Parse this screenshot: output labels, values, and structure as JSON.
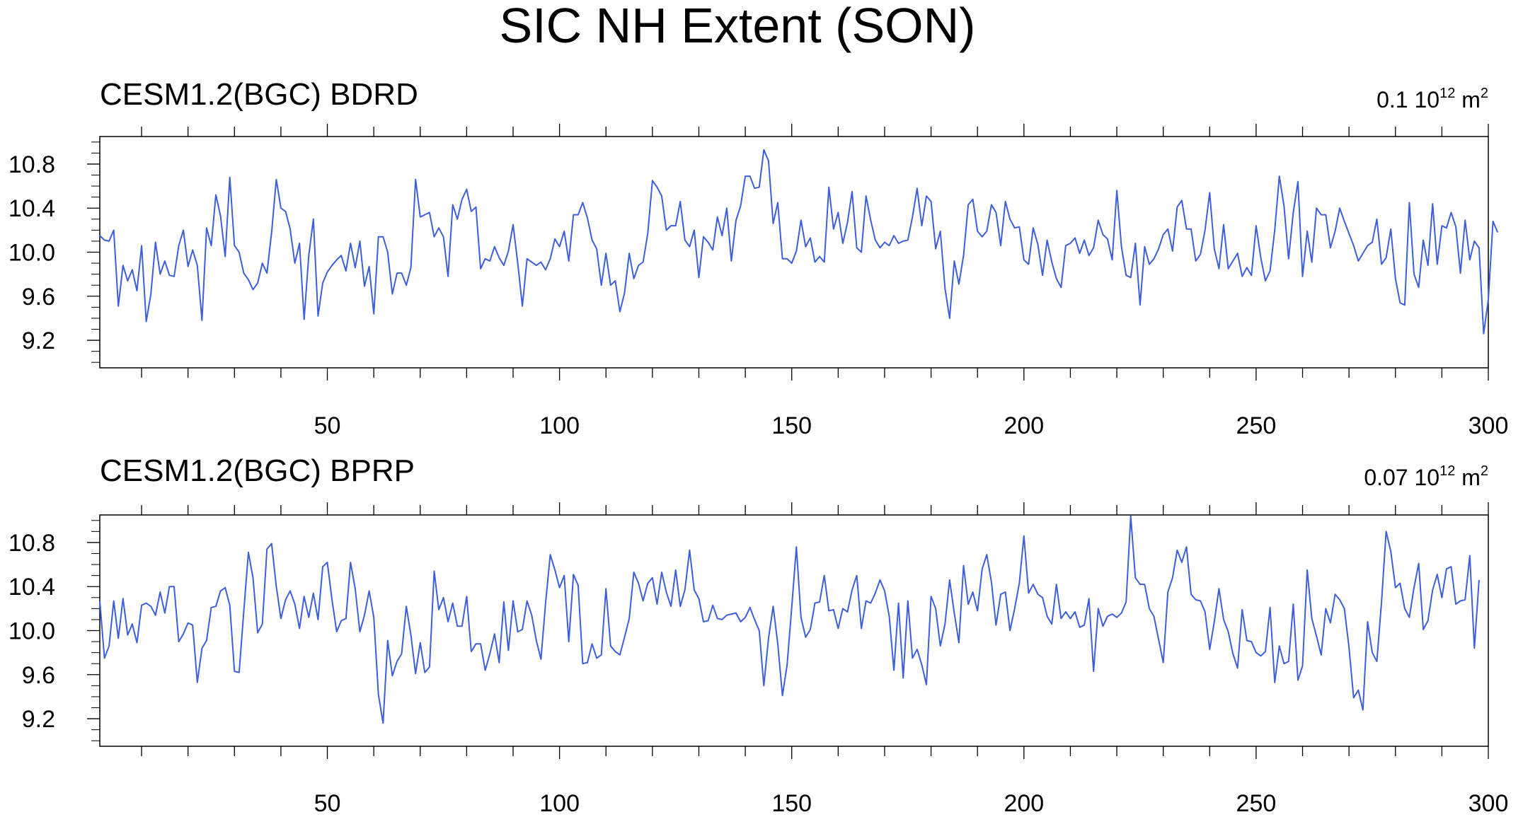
{
  "title": "SIC NH Extent (SON)",
  "colors": {
    "series": "#3d5fd9"
  },
  "chart_data": [
    {
      "type": "line",
      "title": "CESM1.2(BGC) BDRD",
      "annotation": "0.1 10",
      "annotation_sup": "12",
      "annotation_unit": " m",
      "annotation_unit_sup": "2",
      "xlim": [
        1,
        300
      ],
      "ylim": [
        8.95,
        11.05
      ],
      "xticks": [
        50,
        100,
        150,
        200,
        250,
        300
      ],
      "yticks": [
        9.2,
        9.6,
        10.0,
        10.4,
        10.8
      ],
      "ytick_labels": [
        "9.2",
        "9.6",
        "10.0",
        "10.4",
        "10.8"
      ],
      "series": [
        {
          "values": [
            10.15,
            10.11,
            10.1,
            10.2,
            9.51,
            9.88,
            9.74,
            9.84,
            9.65,
            10.06,
            9.37,
            9.62,
            10.09,
            9.8,
            9.92,
            9.79,
            9.78,
            10.06,
            10.2,
            9.87,
            10.02,
            9.88,
            9.38,
            10.22,
            10.06,
            10.52,
            10.33,
            9.96,
            10.68,
            10.06,
            10.0,
            9.81,
            9.75,
            9.66,
            9.72,
            9.9,
            9.81,
            10.18,
            10.66,
            10.4,
            10.37,
            10.21,
            9.9,
            10.08,
            9.39,
            9.97,
            10.3,
            9.42,
            9.72,
            9.82,
            9.88,
            9.93,
            9.97,
            9.83,
            10.08,
            9.86,
            10.1,
            9.69,
            9.87,
            9.44,
            10.14,
            10.14,
            10.0,
            9.62,
            9.81,
            9.81,
            9.7,
            9.86,
            10.66,
            10.32,
            10.34,
            10.36,
            10.14,
            10.22,
            10.14,
            9.78,
            10.43,
            10.3,
            10.48,
            10.57,
            10.37,
            10.41,
            9.85,
            9.94,
            9.92,
            10.05,
            9.95,
            9.88,
            10.01,
            10.25,
            9.9,
            9.51,
            9.94,
            9.91,
            9.88,
            9.91,
            9.84,
            9.94,
            10.12,
            10.05,
            10.19,
            9.92,
            10.34,
            10.34,
            10.45,
            10.31,
            10.11,
            10.03,
            9.7,
            9.99,
            9.7,
            9.74,
            9.46,
            9.63,
            9.99,
            9.76,
            9.88,
            9.91,
            10.17,
            10.65,
            10.59,
            10.51,
            10.2,
            10.24,
            10.24,
            10.46,
            10.11,
            10.05,
            10.2,
            9.77,
            10.14,
            10.09,
            10.02,
            10.32,
            10.15,
            10.4,
            9.92,
            10.29,
            10.42,
            10.69,
            10.69,
            10.58,
            10.59,
            10.93,
            10.83,
            10.26,
            10.45,
            9.94,
            9.94,
            9.9,
            10.01,
            10.29,
            10.05,
            10.13,
            9.91,
            9.96,
            9.91,
            10.59,
            10.21,
            10.36,
            10.08,
            10.27,
            10.55,
            10.04,
            10.0,
            10.51,
            10.29,
            10.11,
            10.04,
            10.09,
            10.06,
            10.15,
            10.08,
            10.1,
            10.11,
            10.32,
            10.58,
            10.24,
            10.51,
            10.46,
            10.03,
            10.19,
            9.67,
            9.4,
            9.92,
            9.71,
            9.97,
            10.43,
            10.48,
            10.19,
            10.14,
            10.19,
            10.43,
            10.36,
            10.06,
            10.46,
            10.3,
            10.22,
            10.23,
            9.93,
            9.89,
            10.22,
            10.07,
            9.79,
            10.11,
            9.91,
            9.76,
            9.68,
            10.06,
            10.08,
            10.13,
            9.99,
            10.11,
            9.97,
            10.04,
            10.29,
            10.16,
            10.12,
            9.93,
            10.56,
            10.05,
            9.79,
            9.77,
            10.08,
            9.52,
            10.05,
            9.89,
            9.94,
            10.03,
            10.16,
            10.21,
            10.01,
            10.41,
            10.47,
            10.21,
            10.21,
            9.92,
            9.98,
            10.2,
            10.54,
            10.03,
            9.85,
            10.25,
            9.85,
            9.92,
            9.99,
            9.78,
            9.86,
            9.79,
            10.24,
            9.95,
            9.74,
            9.83,
            10.2,
            10.69,
            10.42,
            9.94,
            10.36,
            10.64,
            9.78,
            10.19,
            9.91,
            10.4,
            10.34,
            10.34,
            10.04,
            10.19,
            10.4,
            10.28,
            10.17,
            10.06,
            9.92,
            9.99,
            10.06,
            10.09,
            10.3,
            9.89,
            9.95,
            10.21,
            9.76,
            9.54,
            9.52,
            10.45,
            9.8,
            9.68,
            10.11,
            9.88,
            10.44,
            9.89,
            10.24,
            10.22,
            10.36,
            10.23,
            9.81,
            10.29,
            9.93,
            10.1,
            10.04,
            9.26,
            9.57,
            10.28,
            10.18
          ]
        }
      ]
    },
    {
      "type": "line",
      "title": "CESM1.2(BGC) BPRP",
      "annotation": "0.07 10",
      "annotation_sup": "12",
      "annotation_unit": " m",
      "annotation_unit_sup": "2",
      "xlim": [
        1,
        300
      ],
      "ylim": [
        8.95,
        11.05
      ],
      "xticks": [
        50,
        100,
        150,
        200,
        250,
        300
      ],
      "yticks": [
        9.2,
        9.6,
        10.0,
        10.4,
        10.8
      ],
      "ytick_labels": [
        "9.2",
        "9.6",
        "10.0",
        "10.4",
        "10.8"
      ],
      "series": [
        {
          "values": [
            10.27,
            9.75,
            9.86,
            10.27,
            9.93,
            10.29,
            9.96,
            10.06,
            9.89,
            10.23,
            10.25,
            10.22,
            10.14,
            10.35,
            10.16,
            10.4,
            10.4,
            9.9,
            9.97,
            10.07,
            10.05,
            9.53,
            9.84,
            9.91,
            10.21,
            10.22,
            10.36,
            10.39,
            10.23,
            9.63,
            9.62,
            10.17,
            10.71,
            10.48,
            9.98,
            10.06,
            10.74,
            10.79,
            10.4,
            10.11,
            10.28,
            10.36,
            10.24,
            10.02,
            10.31,
            10.12,
            10.34,
            10.1,
            10.58,
            10.62,
            10.28,
            9.99,
            10.09,
            10.11,
            10.62,
            10.38,
            9.99,
            10.14,
            10.36,
            10.12,
            9.42,
            9.16,
            9.91,
            9.59,
            9.72,
            9.79,
            10.22,
            9.96,
            9.61,
            9.89,
            9.62,
            9.67,
            10.54,
            10.19,
            10.3,
            10.08,
            10.25,
            10.04,
            10.04,
            10.31,
            9.81,
            9.88,
            9.88,
            9.64,
            9.79,
            9.97,
            9.71,
            10.26,
            9.82,
            10.27,
            9.99,
            10.01,
            10.27,
            10.14,
            9.91,
            9.74,
            10.25,
            10.69,
            10.55,
            10.39,
            10.5,
            9.9,
            10.51,
            10.41,
            9.7,
            9.71,
            9.88,
            9.75,
            9.78,
            10.38,
            9.86,
            9.81,
            9.78,
            9.94,
            10.11,
            10.53,
            10.43,
            10.27,
            10.43,
            10.48,
            10.24,
            10.53,
            10.35,
            10.22,
            10.55,
            10.22,
            10.37,
            10.73,
            10.37,
            10.29,
            10.08,
            10.09,
            10.23,
            10.11,
            10.1,
            10.14,
            10.15,
            10.16,
            10.08,
            10.12,
            10.21,
            10.1,
            10.0,
            9.5,
            9.93,
            10.22,
            9.88,
            9.41,
            9.69,
            10.21,
            10.76,
            10.12,
            9.94,
            10.01,
            10.25,
            10.26,
            10.5,
            10.18,
            10.19,
            10.02,
            10.2,
            10.17,
            10.37,
            10.5,
            10.02,
            10.27,
            10.25,
            10.34,
            10.46,
            10.36,
            10.13,
            9.64,
            10.25,
            9.57,
            10.27,
            9.75,
            9.83,
            9.69,
            9.51,
            10.31,
            10.2,
            9.86,
            10.06,
            10.46,
            10.16,
            9.89,
            10.59,
            10.24,
            10.35,
            10.18,
            10.56,
            10.69,
            10.44,
            10.05,
            10.33,
            10.35,
            10.0,
            10.2,
            10.43,
            10.86,
            10.34,
            10.42,
            10.33,
            10.3,
            10.13,
            10.06,
            10.42,
            10.11,
            10.17,
            10.11,
            10.17,
            10.03,
            10.05,
            10.29,
            9.63,
            10.2,
            10.04,
            10.13,
            10.15,
            10.12,
            10.16,
            10.26,
            11.04,
            10.48,
            10.42,
            10.42,
            10.2,
            10.13,
            9.92,
            9.71,
            10.35,
            10.48,
            10.73,
            10.62,
            10.76,
            10.33,
            10.28,
            10.27,
            10.17,
            9.83,
            10.08,
            10.38,
            10.1,
            9.99,
            9.79,
            9.66,
            10.19,
            9.91,
            9.9,
            9.8,
            9.77,
            9.81,
            10.21,
            9.53,
            9.86,
            9.7,
            9.72,
            10.24,
            9.55,
            9.68,
            10.55,
            10.11,
            9.95,
            9.78,
            10.2,
            10.07,
            10.33,
            10.28,
            10.2,
            9.85,
            9.39,
            9.46,
            9.28,
            10.08,
            9.8,
            9.72,
            10.26,
            10.9,
            10.72,
            10.39,
            10.43,
            10.2,
            10.12,
            10.39,
            10.61,
            10.01,
            10.09,
            10.37,
            10.51,
            10.3,
            10.56,
            10.58,
            10.24,
            10.27,
            10.28,
            10.68,
            9.84,
            10.46
          ]
        }
      ]
    }
  ]
}
